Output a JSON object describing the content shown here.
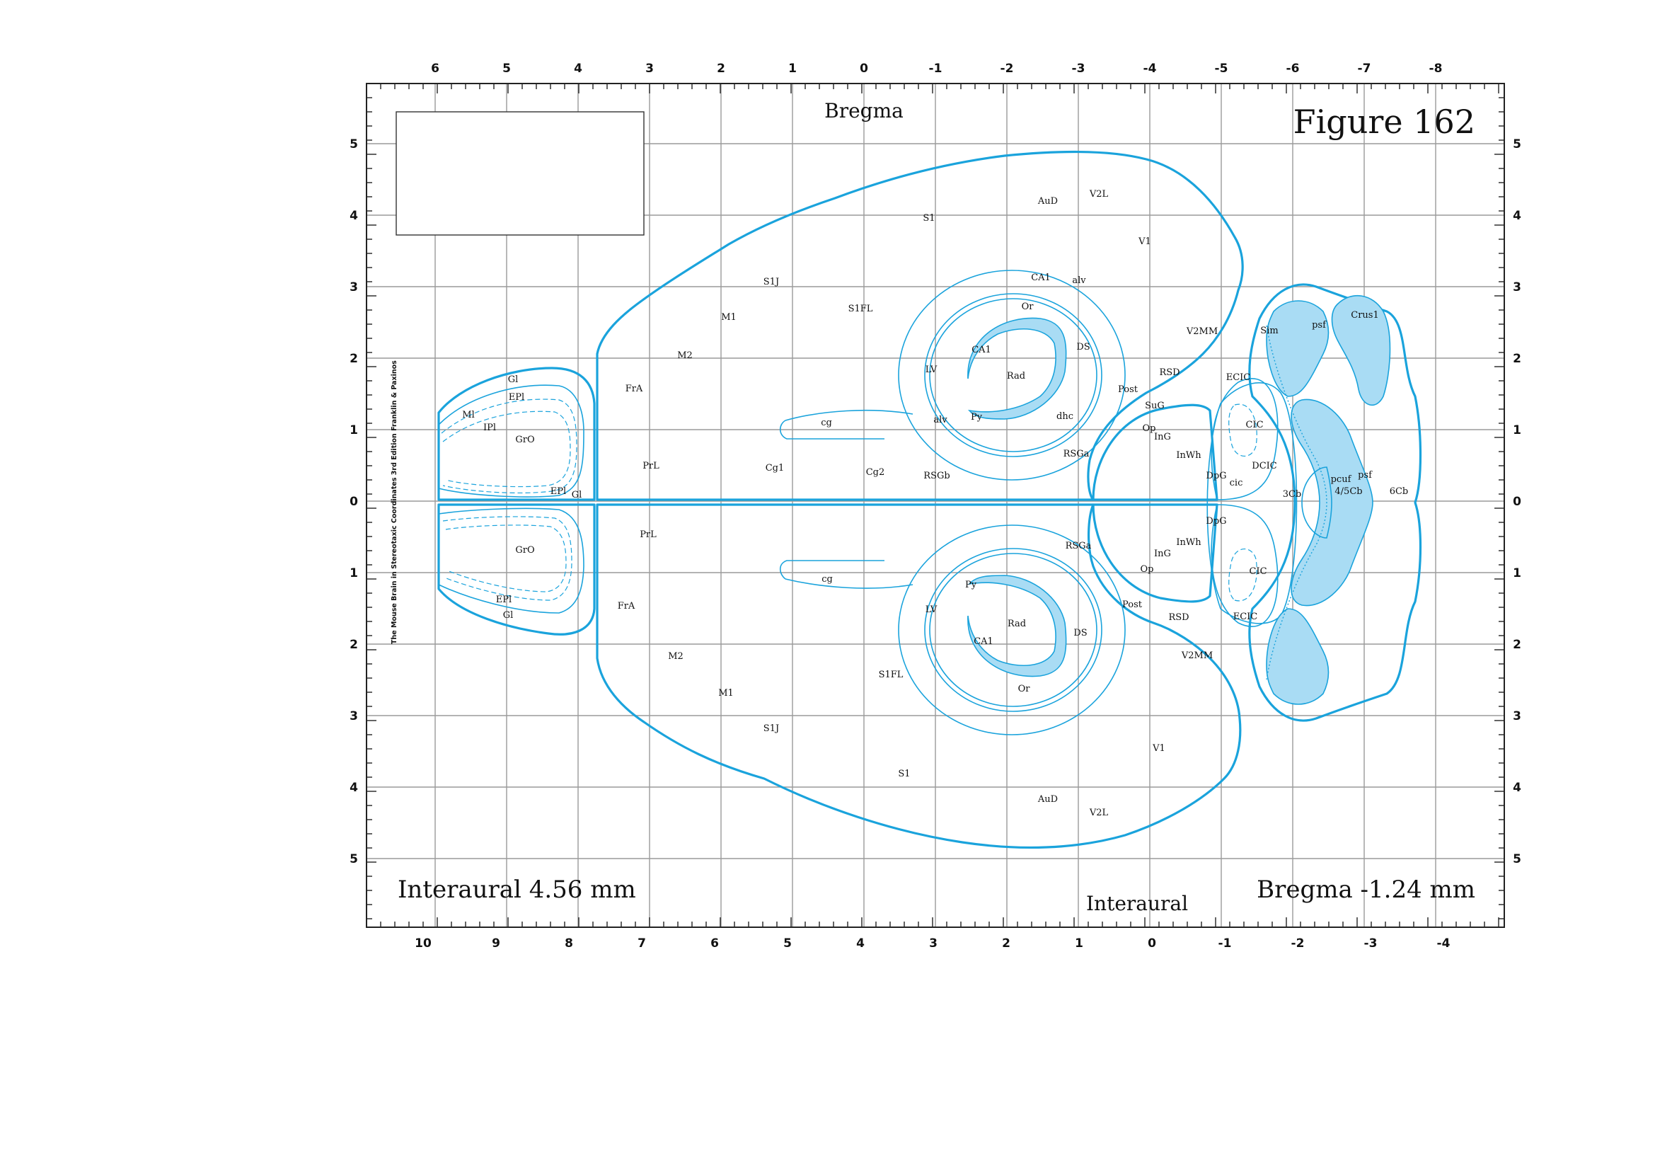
{
  "figure_title": "Figure 162",
  "bregma_header": "Bregma",
  "interaural_footer": "Interaural",
  "interaural_caption": "Interaural 4.56 mm",
  "bregma_caption": "Bregma -1.24 mm",
  "credit": "The Mouse Brain in Stereotaxic Coordinates 3rd Edition  Franklin & Paxinos",
  "top_axis": [
    "6",
    "5",
    "4",
    "3",
    "2",
    "1",
    "0",
    "-1",
    "-2",
    "-3",
    "-4",
    "-5",
    "-6",
    "-7",
    "-8"
  ],
  "bottom_axis": [
    "10",
    "9",
    "8",
    "7",
    "6",
    "5",
    "4",
    "3",
    "2",
    "1",
    "0",
    "-1",
    "-2",
    "-3",
    "-4"
  ],
  "left_axis": [
    "5",
    "4",
    "3",
    "2",
    "1",
    "0",
    "1",
    "2",
    "3",
    "4",
    "5"
  ],
  "right_axis": [
    "5",
    "4",
    "3",
    "2",
    "1",
    "0",
    "1",
    "2",
    "3",
    "4",
    "5"
  ],
  "colors": {
    "outline": "#1aa3dc",
    "fill": "#a9dcf4",
    "grid": "#9a9a9a"
  },
  "regions": {
    "top": [
      "Gl",
      "EPl",
      "Ml",
      "IPl",
      "GrO",
      "EPl",
      "Gl",
      "FrA",
      "PrL",
      "M2",
      "M1",
      "S1J",
      "S1FL",
      "S1",
      "AuD",
      "V2L",
      "V1",
      "CA1",
      "alv",
      "Or",
      "CA1",
      "DS",
      "Rad",
      "LV",
      "cg",
      "Cg1",
      "Cg2",
      "RSGb",
      "Py",
      "alv",
      "dhc",
      "Post",
      "RSD",
      "V2MM",
      "SuG",
      "Op",
      "InG",
      "InWh",
      "DpG",
      "RSGa",
      "ECIC",
      "CIC",
      "DCIC",
      "cic",
      "3Cb",
      "pcuf",
      "4/5Cb",
      "psf",
      "6Cb",
      "Sim",
      "psf",
      "Crus1"
    ],
    "bottom": [
      "GrO",
      "EPl",
      "Gl",
      "FrA",
      "PrL",
      "M2",
      "M1",
      "S1J",
      "S1FL",
      "S1",
      "AuD",
      "V2L",
      "V1",
      "cg",
      "LV",
      "Py",
      "Rad",
      "CA1",
      "Or",
      "DS",
      "Post",
      "RSD",
      "V2MM",
      "RSGa",
      "InG",
      "InWh",
      "DpG",
      "Op",
      "CIC",
      "ECIC"
    ]
  }
}
